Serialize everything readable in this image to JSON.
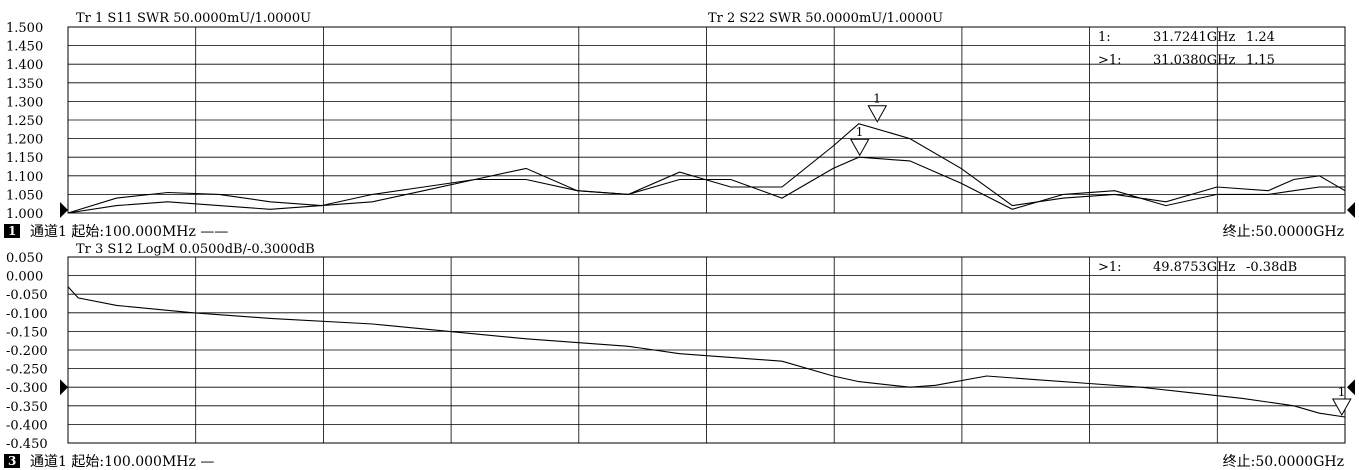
{
  "chart_data": [
    {
      "type": "line",
      "panel": "top",
      "trace_headers": [
        {
          "label": "Tr 1  S11 SWR 50.0000mU/1.0000U"
        },
        {
          "label": "Tr 2  S22 SWR 50.0000mU/1.0000U"
        }
      ],
      "y_ticks": [
        "1.500",
        "1.450",
        "1.400",
        "1.350",
        "1.300",
        "1.250",
        "1.200",
        "1.150",
        "1.100",
        "1.050",
        "1.000"
      ],
      "ylim": [
        1.0,
        1.5
      ],
      "xlim": [
        0.1,
        50.0
      ],
      "grid": true,
      "marker_readouts": [
        {
          "label": "1:",
          "freq": "31.7241GHz",
          "value": "1.24"
        },
        {
          "label": ">1:",
          "freq": "31.0380GHz",
          "value": "1.15"
        }
      ],
      "markers": [
        {
          "label": "1",
          "x": 31.7241,
          "y": 1.24
        },
        {
          "label": "1",
          "x": 31.038,
          "y": 1.15
        }
      ],
      "footer": {
        "channel_badge": "1",
        "start": "通道1  起始:100.000MHz ——",
        "stop": "终止:50.0000GHz"
      },
      "series": [
        {
          "x": [
            0.1,
            2,
            4,
            6,
            8,
            10,
            12,
            14,
            16,
            18,
            20,
            22,
            24,
            26,
            28,
            30,
            31,
            33,
            35,
            37,
            39,
            41,
            43,
            45,
            47,
            48,
            49,
            50
          ],
          "values": [
            1.0,
            1.04,
            1.055,
            1.05,
            1.03,
            1.02,
            1.03,
            1.06,
            1.09,
            1.12,
            1.06,
            1.05,
            1.11,
            1.07,
            1.07,
            1.18,
            1.24,
            1.2,
            1.12,
            1.02,
            1.04,
            1.05,
            1.03,
            1.07,
            1.06,
            1.09,
            1.1,
            1.06
          ]
        },
        {
          "x": [
            0.1,
            2,
            4,
            6,
            8,
            10,
            12,
            14,
            16,
            18,
            20,
            22,
            24,
            26,
            28,
            30,
            31,
            33,
            35,
            37,
            39,
            41,
            43,
            45,
            47,
            48,
            49,
            50
          ],
          "values": [
            1.0,
            1.02,
            1.03,
            1.02,
            1.01,
            1.02,
            1.05,
            1.07,
            1.09,
            1.09,
            1.06,
            1.05,
            1.09,
            1.09,
            1.04,
            1.12,
            1.15,
            1.14,
            1.08,
            1.01,
            1.05,
            1.06,
            1.02,
            1.05,
            1.05,
            1.06,
            1.07,
            1.07
          ]
        }
      ]
    },
    {
      "type": "line",
      "panel": "bottom",
      "trace_headers": [
        {
          "label": "Tr 3  S12 LogM 0.0500dB/-0.3000dB"
        }
      ],
      "y_ticks": [
        "0.050",
        "0.000",
        "-0.050",
        "-0.100",
        "-0.150",
        "-0.200",
        "-0.250",
        "-0.300",
        "-0.350",
        "-0.400",
        "-0.450"
      ],
      "ylim": [
        -0.45,
        0.05
      ],
      "xlim": [
        0.1,
        50.0
      ],
      "grid": true,
      "marker_readouts": [
        {
          "label": ">1:",
          "freq": "49.8753GHz",
          "value": "-0.38dB"
        }
      ],
      "markers": [
        {
          "label": "1",
          "x": 49.8753,
          "y": -0.38
        }
      ],
      "footer": {
        "channel_badge": "3",
        "start": "通道1  起始:100.000MHz —",
        "stop": "终止:50.0000GHz"
      },
      "series": [
        {
          "x": [
            0.1,
            0.5,
            2,
            5,
            8,
            12,
            15,
            18,
            20,
            22,
            24,
            26,
            28,
            30,
            31,
            33,
            34,
            36,
            38,
            40,
            42,
            44,
            46,
            48,
            49,
            50
          ],
          "values": [
            -0.03,
            -0.06,
            -0.08,
            -0.1,
            -0.115,
            -0.13,
            -0.15,
            -0.17,
            -0.18,
            -0.19,
            -0.21,
            -0.22,
            -0.23,
            -0.27,
            -0.285,
            -0.3,
            -0.295,
            -0.27,
            -0.28,
            -0.29,
            -0.3,
            -0.315,
            -0.33,
            -0.35,
            -0.37,
            -0.38
          ]
        }
      ]
    }
  ]
}
